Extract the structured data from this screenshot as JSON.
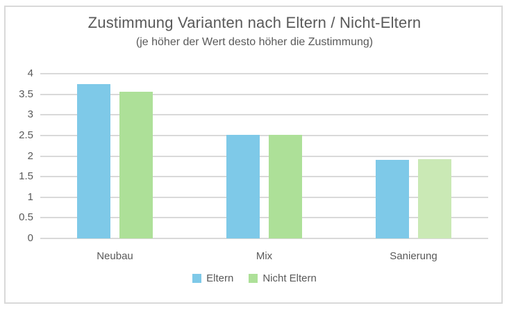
{
  "chart_data": {
    "type": "bar",
    "title": "Zustimmung Varianten nach Eltern / Nicht-Eltern",
    "subtitle": "(je höher der Wert desto höher die Zustimmung)",
    "categories": [
      "Neubau",
      "Mix",
      "Sanierung"
    ],
    "series": [
      {
        "name": "Eltern",
        "color": "#7EC9E8",
        "values": [
          3.75,
          2.51,
          1.9
        ],
        "bar_colors": [
          "#7EC9E8",
          "#7EC9E8",
          "#7EC9E8"
        ]
      },
      {
        "name": "Nicht Eltern",
        "color": "#ADE098",
        "values": [
          3.56,
          2.51,
          1.93
        ],
        "bar_colors": [
          "#ADE098",
          "#ADE098",
          "#CAE9B5"
        ]
      }
    ],
    "y_ticks": [
      0,
      0.5,
      1,
      1.5,
      2,
      2.5,
      3,
      3.5,
      4
    ],
    "ylim": [
      0,
      4
    ],
    "grid": true,
    "legend_position": "bottom",
    "colors": {
      "gridline": "#d9d9d9",
      "text": "#595959",
      "frame_border": "#d9d9d9",
      "background": "#ffffff"
    }
  }
}
